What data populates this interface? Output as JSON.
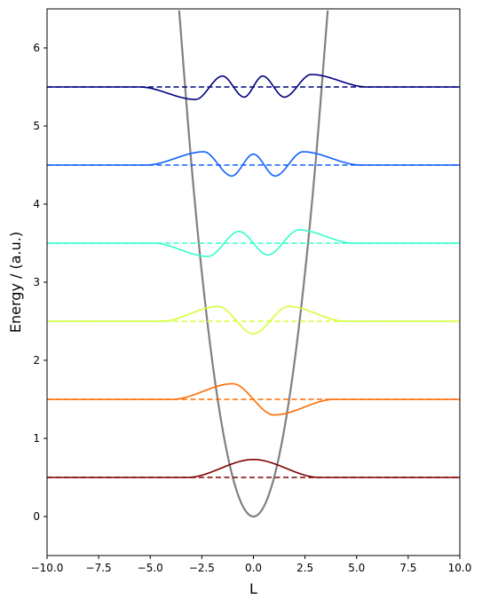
{
  "chart_data": {
    "type": "line",
    "title": "",
    "xlabel": "L",
    "ylabel": "Energy / (a.u.)",
    "xlim": [
      -10,
      10
    ],
    "ylim": [
      -0.5,
      6.5
    ],
    "xticks": [
      -10,
      -7.5,
      -5,
      -2.5,
      0,
      2.5,
      5,
      7.5,
      10
    ],
    "xtick_labels": [
      "−10.0",
      "−7.5",
      "−5.0",
      "−2.5",
      "0.0",
      "2.5",
      "5.0",
      "7.5",
      "10.0"
    ],
    "yticks": [
      0,
      1,
      2,
      3,
      4,
      5,
      6
    ],
    "ytick_labels": [
      "0",
      "1",
      "2",
      "3",
      "4",
      "5",
      "6"
    ],
    "grid": false,
    "legend": "none",
    "potential": {
      "formula": "0.5*x^2",
      "color": "#808080",
      "x": [
        -3.6,
        -3.0,
        -2.5,
        -2.0,
        -1.5,
        -1.0,
        -0.5,
        0.0,
        0.5,
        1.0,
        1.5,
        2.0,
        2.5,
        3.0,
        3.6
      ],
      "y": [
        6.48,
        4.5,
        3.125,
        2.0,
        1.125,
        0.5,
        0.125,
        0.0,
        0.125,
        0.5,
        1.125,
        2.0,
        3.125,
        4.5,
        6.48
      ]
    },
    "series": [
      {
        "n": 0,
        "energy": 0.5,
        "color": "#800000",
        "peaks_x": [
          0.0
        ],
        "peaks_y": [
          0.73
        ]
      },
      {
        "n": 1,
        "energy": 1.5,
        "color": "#ff6a00",
        "peaks_x": [
          -1.0,
          1.0
        ],
        "peaks_y": [
          1.7,
          1.3
        ]
      },
      {
        "n": 2,
        "energy": 2.5,
        "color": "#d4ff3a",
        "peaks_x": [
          -1.7,
          0.0,
          1.7
        ],
        "peaks_y": [
          2.69,
          2.34,
          2.69
        ]
      },
      {
        "n": 3,
        "energy": 3.5,
        "color": "#33ffcc",
        "peaks_x": [
          -2.2,
          -0.7,
          0.7,
          2.2
        ],
        "peaks_y": [
          3.33,
          3.65,
          3.35,
          3.67
        ]
      },
      {
        "n": 4,
        "energy": 4.5,
        "color": "#0f5fff",
        "peaks_x": [
          -2.4,
          -1.05,
          0.0,
          1.05,
          2.4
        ],
        "peaks_y": [
          4.67,
          4.36,
          4.64,
          4.36,
          4.67
        ]
      },
      {
        "n": 5,
        "energy": 5.5,
        "color": "#000080",
        "peaks_x": [
          -2.8,
          -1.5,
          -0.45,
          0.45,
          1.5,
          2.8
        ],
        "peaks_y": [
          5.34,
          5.64,
          5.37,
          5.64,
          5.37,
          5.66
        ]
      }
    ]
  }
}
